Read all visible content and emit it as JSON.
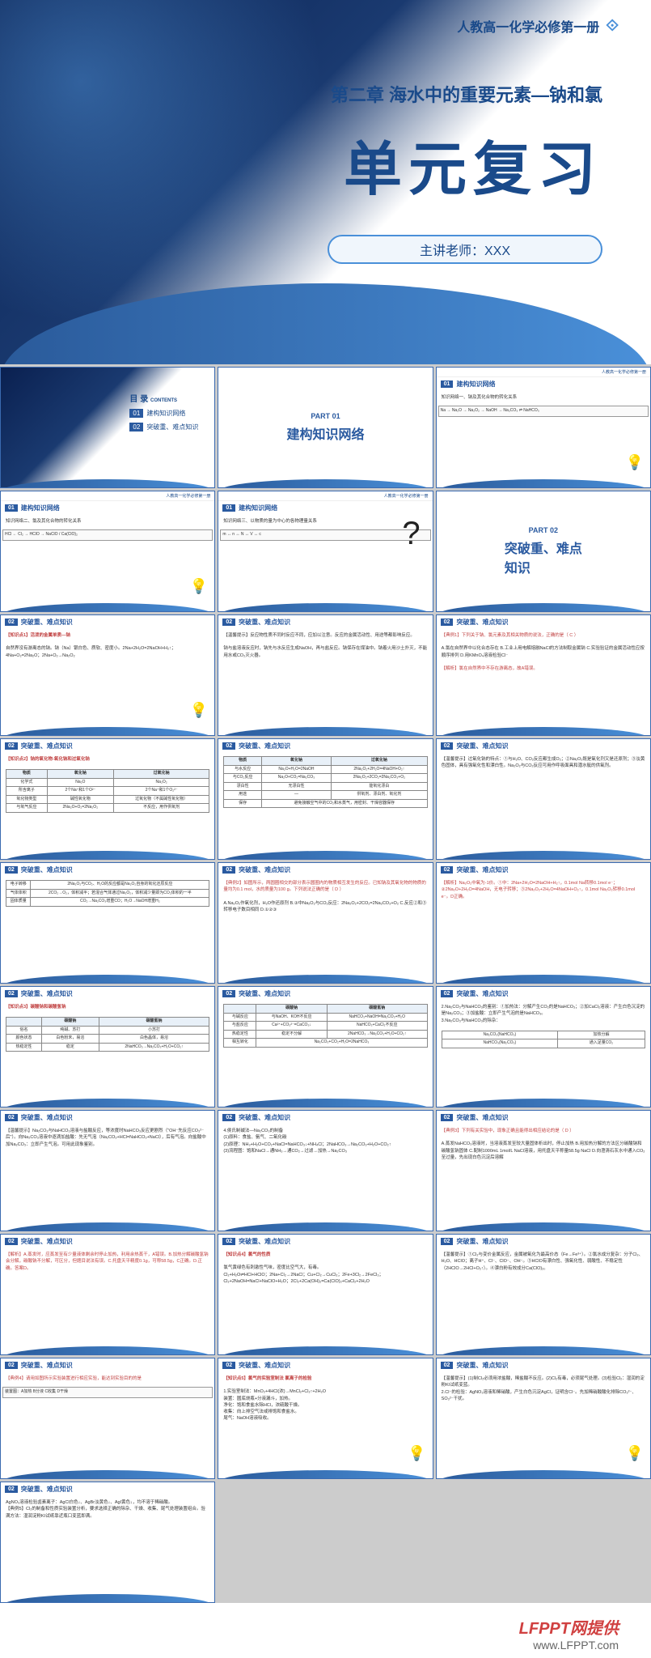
{
  "header": {
    "book": "人教高一化学必修第一册",
    "chapter": "第二章 海水中的重要元素—钠和氯",
    "title": "单元复习",
    "teacher_label": "主讲老师：XXX"
  },
  "colors": {
    "primary": "#2a5aa0",
    "accent": "#4a90d9",
    "dark": "#1a4a8a",
    "bg_dark": "#0a2050"
  },
  "toc": {
    "heading": "目 录",
    "heading_en": "CONTENTS",
    "items": [
      {
        "num": "01",
        "label": "建构知识网络"
      },
      {
        "num": "02",
        "label": "突破重、难点知识"
      }
    ]
  },
  "parts": [
    {
      "label": "PART 01",
      "title": "建构知识网络"
    },
    {
      "label": "PART 02",
      "title": "突破重、难点\n知识"
    }
  ],
  "section1": {
    "num": "01",
    "title": "建构知识网络",
    "net1": "知识网络一、钠及其化合物的转化关系",
    "net2": "知识网络二、氯及其化合物的转化关系",
    "net3": "知识网络三、以物质的量为中心的各物理量关系"
  },
  "section2": {
    "num": "02",
    "title": "突破重、难点知识",
    "points": [
      "【知识点1】活泼的金属单质—钠",
      "【知识点2】钠的氧化物-氧化钠和过氧化钠",
      "【知识点3】碳酸钠和碳酸氢钠",
      "【知识点4】氯气的性质",
      "【知识点5】氯气的实验室制法 氯离子的检验"
    ],
    "highlights": [
      "【温馨提示】反应物性质不同时反应不同，应加以注意。反应的金属活动性、用途等都影响反应。",
      "【典例1】下列关于钠、氯元素及其相关物质的说法，正确的是（ C ）",
      "【解析】氯在自然界中不存在游离态，故A错误。",
      "【典例2】如图所示，两圆圈相交的部分表示圆圈内的物质相互发生的反应。已知钠及其氧化物的物质的量均为0.1 mol，水的质量为100 g。下列说法正确的是（ D ）",
      "【典例3】下列有关实验中，现象正确且能得出相应结论的是（ D ）",
      "【典例4】请用如图所示实验装置进行相应实验，能达到实验目的的是"
    ],
    "table_oxide": {
      "cols": [
        "物质",
        "氧化钠",
        "过氧化钠"
      ],
      "rows": [
        [
          "化学式",
          "Na₂O",
          "Na₂O₂"
        ],
        [
          "所含离子",
          "2个Na⁺和1个O²⁻",
          "2个Na⁺和1个O₂²⁻"
        ],
        [
          "氧化物类型",
          "碱性氧化物",
          "过氧化物（不属碱性氧化物）"
        ],
        [
          "与氧气反应",
          "2Na₂O+O₂=2Na₂O₂",
          "不反应，用作供氧剂"
        ]
      ]
    },
    "table_compare": {
      "cols": [
        "物质",
        "氧化钠",
        "过氧化钠"
      ],
      "rows": [
        [
          "与水反应",
          "Na₂O+H₂O=2NaOH",
          "2Na₂O₂+2H₂O=4NaOH+O₂↑"
        ],
        [
          "与CO₂反应",
          "Na₂O+CO₂=Na₂CO₃",
          "2Na₂O₂+2CO₂=2Na₂CO₃+O₂"
        ],
        [
          "漂白性",
          "无漂白性",
          "能氧化漂白"
        ],
        [
          "用途",
          "—",
          "供氧剂、漂白剂、氧化剂"
        ],
        [
          "保存",
          "避免接触空气中的CO₂和水蒸气，用密封、干燥容器保存",
          ""
        ]
      ]
    },
    "table_carbonate": {
      "cols": [
        "",
        "碳酸钠",
        "碳酸氢钠"
      ],
      "rows": [
        [
          "俗名",
          "纯碱、苏打",
          "小苏打"
        ],
        [
          "与酸反应",
          "Na₂CO₃+2HCl=2NaCl+H₂O+CO₂↑",
          "NaHCO₃+HCl=NaCl+H₂O+CO₂↑"
        ],
        [
          "与碱反应",
          "Na₂CO₃+Ca(OH)₂=CaCO₃↓+2NaOH",
          "NaHCO₃+NaOH=Na₂CO₃+H₂O"
        ],
        [
          "热稳定性",
          "稳定",
          "2NaHCO₃→Na₂CO₃+H₂O+CO₂↑"
        ],
        [
          "相互转化",
          "Na₂CO₃+CO₂+H₂O=2NaHCO₃",
          "—"
        ]
      ]
    },
    "chlorine_eqs": [
      "Cl₂+H₂O⇌HCl+HClO",
      "2Na+Cl₂→2NaCl",
      "Cu+Cl₂→CuCl₂",
      "2Fe+3Cl₂→2FeCl₃",
      "Cl₂+2NaOH=NaCl+NaClO+H₂O",
      "2Cl₂+2Ca(OH)₂=Ca(ClO)₂+CaCl₂+2H₂O"
    ],
    "lab_prep": "MnO₂+4HCl(浓)→MnCl₂+Cl₂↑+2H₂O",
    "ion_test": "AgNO₃溶液和稀硝酸，产生白色沉淀AgCl，证明含Cl⁻"
  },
  "footer": {
    "logo": "LFPPT网提供",
    "url": "www.LFPPT.com"
  }
}
